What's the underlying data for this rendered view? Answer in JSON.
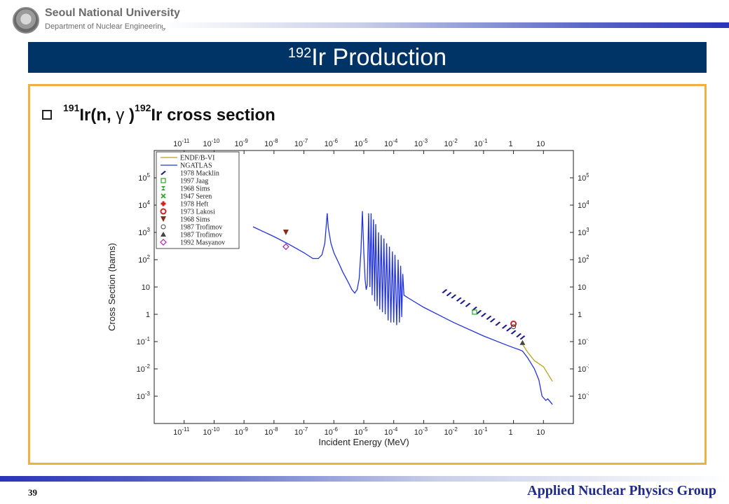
{
  "header": {
    "university": "Seoul National University",
    "department": "Department of Nuclear Engineering"
  },
  "slide": {
    "title_sup": "192",
    "title_main": "Ir Production",
    "bullet": {
      "sup1": "191",
      "part1": "Ir(n, ",
      "gamma": "γ",
      "part2": " )",
      "sup2": "192",
      "part3": "Ir cross section"
    }
  },
  "chart_data": {
    "type": "line",
    "xlabel": "Incident Energy (MeV)",
    "ylabel": "Cross Section (barns)",
    "x_scale": "log",
    "y_scale": "log",
    "xlim": [
      1e-12,
      100
    ],
    "ylim": [
      0.0001,
      1000000
    ],
    "x_ticks": [
      {
        "v": 1e-11,
        "base": "10",
        "exp": "-11"
      },
      {
        "v": 1e-10,
        "base": "10",
        "exp": "-10"
      },
      {
        "v": 1e-09,
        "base": "10",
        "exp": "-9"
      },
      {
        "v": 1e-08,
        "base": "10",
        "exp": "-8"
      },
      {
        "v": 1e-07,
        "base": "10",
        "exp": "-7"
      },
      {
        "v": 1e-06,
        "base": "10",
        "exp": "-6"
      },
      {
        "v": 1e-05,
        "base": "10",
        "exp": "-5"
      },
      {
        "v": 0.0001,
        "base": "10",
        "exp": "-4"
      },
      {
        "v": 0.001,
        "base": "10",
        "exp": "-3"
      },
      {
        "v": 0.01,
        "base": "10",
        "exp": "-2"
      },
      {
        "v": 0.1,
        "base": "10",
        "exp": "-1"
      },
      {
        "v": 1,
        "base": "1",
        "exp": ""
      },
      {
        "v": 10,
        "base": "10",
        "exp": ""
      }
    ],
    "y_ticks": [
      {
        "v": 100000,
        "base": "10",
        "exp": "5"
      },
      {
        "v": 10000,
        "base": "10",
        "exp": "4"
      },
      {
        "v": 1000,
        "base": "10",
        "exp": "3"
      },
      {
        "v": 100,
        "base": "10",
        "exp": "2"
      },
      {
        "v": 10,
        "base": "10",
        "exp": ""
      },
      {
        "v": 1,
        "base": "1",
        "exp": ""
      },
      {
        "v": 0.1,
        "base": "10",
        "exp": "-1"
      },
      {
        "v": 0.01,
        "base": "10",
        "exp": "-2"
      },
      {
        "v": 0.001,
        "base": "10",
        "exp": "-3"
      }
    ],
    "legend_position": "top-left",
    "series": [
      {
        "name": "ENDF/B-VI",
        "kind": "line",
        "color": "#b8a21a",
        "points": [
          [
            2,
            0.08
          ],
          [
            3,
            0.04
          ],
          [
            5,
            0.02
          ],
          [
            10,
            0.012
          ],
          [
            20,
            0.0035
          ]
        ]
      },
      {
        "name": "NGATLAS",
        "kind": "line",
        "color": "#2233dd",
        "points": [
          [
            2e-09,
            1600
          ],
          [
            1e-08,
            700
          ],
          [
            3e-08,
            380
          ],
          [
            1e-07,
            180
          ],
          [
            2e-07,
            110
          ],
          [
            3e-07,
            110
          ],
          [
            4e-07,
            150
          ],
          [
            5e-07,
            400
          ],
          [
            5.5e-07,
            1500
          ],
          [
            6e-07,
            5000
          ],
          [
            6.5e-07,
            1500
          ],
          [
            8e-07,
            400
          ],
          [
            1e-06,
            180
          ],
          [
            1.5e-06,
            70
          ],
          [
            2e-06,
            35
          ],
          [
            3e-06,
            15
          ],
          [
            4e-06,
            8
          ],
          [
            5e-06,
            6
          ],
          [
            6e-06,
            8
          ],
          [
            7e-06,
            20
          ],
          [
            8e-06,
            200
          ],
          [
            9e-06,
            6000
          ],
          [
            1e-05,
            200
          ],
          [
            1.1e-05,
            20
          ],
          [
            1.2e-05,
            8
          ],
          [
            1.3e-05,
            12
          ],
          [
            1.45e-05,
            5000
          ],
          [
            1.6e-05,
            10
          ],
          [
            1.75e-05,
            5000
          ],
          [
            1.9e-05,
            5
          ],
          [
            2.1e-05,
            3000
          ],
          [
            2.3e-05,
            3
          ],
          [
            2.5e-05,
            2000
          ],
          [
            2.8e-05,
            2
          ],
          [
            3.1e-05,
            1000
          ],
          [
            3.4e-05,
            1.5
          ],
          [
            3.8e-05,
            800
          ],
          [
            4.2e-05,
            1.2
          ],
          [
            4.7e-05,
            600
          ],
          [
            5.2e-05,
            1
          ],
          [
            5.8e-05,
            400
          ],
          [
            6.5e-05,
            0.6
          ],
          [
            7.2e-05,
            300
          ],
          [
            8e-05,
            0.5
          ],
          [
            9e-05,
            200
          ],
          [
            0.0001,
            0.5
          ],
          [
            0.00011,
            150
          ],
          [
            0.000125,
            0.4
          ],
          [
            0.00014,
            100
          ],
          [
            0.000155,
            0.5
          ],
          [
            0.00017,
            60
          ],
          [
            0.000185,
            0.8
          ],
          [
            0.0002,
            30
          ],
          [
            0.00022,
            5
          ],
          [
            0.0003,
            4
          ],
          [
            0.001,
            1.8
          ],
          [
            0.01,
            0.5
          ],
          [
            0.1,
            0.16
          ],
          [
            0.5,
            0.08
          ],
          [
            1,
            0.06
          ],
          [
            1.6,
            0.05
          ],
          [
            2,
            0.045
          ],
          [
            3,
            0.025
          ],
          [
            5,
            0.01
          ],
          [
            7,
            0.004
          ],
          [
            9,
            0.001
          ],
          [
            12,
            0.0007
          ],
          [
            14,
            0.0008
          ],
          [
            20,
            0.0005
          ]
        ]
      },
      {
        "name": "1978 Macklin",
        "kind": "marker",
        "color": "#1a1a8a",
        "points": [
          [
            0.005,
            7
          ],
          [
            0.007,
            5.5
          ],
          [
            0.01,
            4.5
          ],
          [
            0.015,
            3.5
          ],
          [
            0.02,
            2.8
          ],
          [
            0.03,
            2.2
          ],
          [
            0.05,
            1.6
          ],
          [
            0.07,
            1.2
          ],
          [
            0.1,
            0.95
          ],
          [
            0.15,
            0.75
          ],
          [
            0.2,
            0.6
          ],
          [
            0.3,
            0.45
          ],
          [
            0.5,
            0.35
          ],
          [
            0.7,
            0.28
          ],
          [
            1,
            0.22
          ],
          [
            1.5,
            0.17
          ],
          [
            2,
            0.14
          ]
        ]
      },
      {
        "name": "1997 Jaag",
        "kind": "marker",
        "color": "#22aa22",
        "points": [
          [
            0.05,
            1.2
          ]
        ]
      },
      {
        "name": "1968 Sims",
        "kind": "marker",
        "color": "#22aa22",
        "points": []
      },
      {
        "name": "1947 Seren",
        "kind": "marker",
        "color": "#22aa22",
        "points": []
      },
      {
        "name": "1978 Heft",
        "kind": "marker",
        "color": "#cc2222",
        "points": []
      },
      {
        "name": "1973 Lakosi",
        "kind": "marker",
        "color": "#cc2222",
        "points": [
          [
            1,
            0.45
          ]
        ]
      },
      {
        "name": "1968 Sims",
        "kind": "marker",
        "color": "#8a2a1a",
        "points": [
          [
            2.5e-08,
            1000
          ]
        ]
      },
      {
        "name": "1987 Trofimov",
        "kind": "marker",
        "color": "#444444",
        "points": [
          [
            1,
            0.35
          ]
        ]
      },
      {
        "name": "1987 Trofimov",
        "kind": "marker",
        "color": "#444444",
        "points": [
          [
            2,
            0.09
          ]
        ]
      },
      {
        "name": "1992 Masyanov",
        "kind": "marker",
        "color": "#aa22aa",
        "points": [
          [
            2.5e-08,
            300
          ]
        ]
      }
    ]
  },
  "footer": {
    "page_number": "39",
    "group": "Applied Nuclear Physics Group"
  }
}
